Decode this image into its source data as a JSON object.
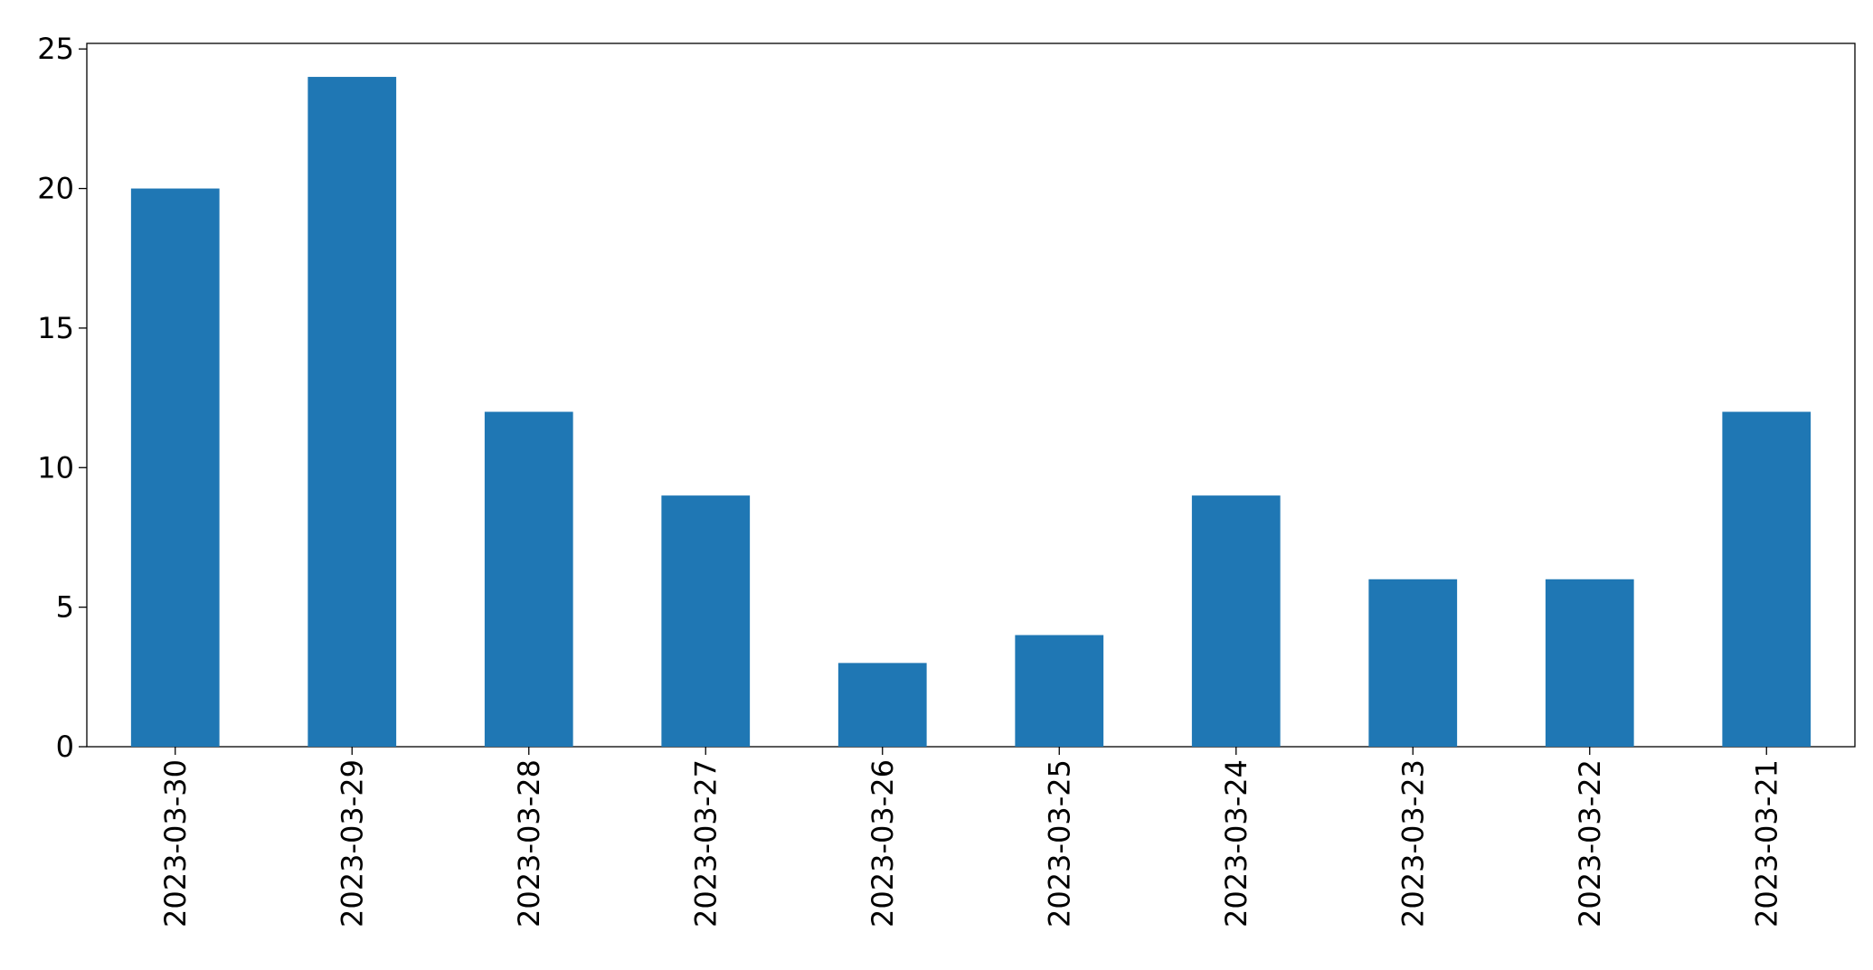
{
  "chart_data": {
    "type": "bar",
    "categories": [
      "2023-03-30",
      "2023-03-29",
      "2023-03-28",
      "2023-03-27",
      "2023-03-26",
      "2023-03-25",
      "2023-03-24",
      "2023-03-23",
      "2023-03-22",
      "2023-03-21"
    ],
    "values": [
      20,
      24,
      12,
      9,
      3,
      4,
      9,
      6,
      6,
      12
    ],
    "color": "#1f77b4",
    "ylim": [
      0,
      25.2
    ],
    "yticks": [
      0,
      5,
      10,
      15,
      20,
      25
    ],
    "grid": false
  }
}
